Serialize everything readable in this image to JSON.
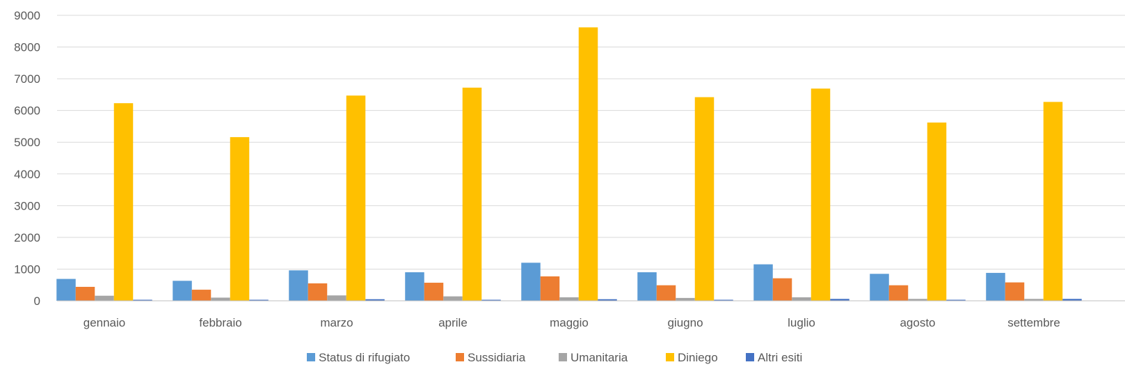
{
  "chart_data": {
    "type": "bar",
    "categories": [
      "gennaio",
      "febbraio",
      "marzo",
      "aprile",
      "maggio",
      "giugno",
      "luglio",
      "agosto",
      "settembre"
    ],
    "series": [
      {
        "name": "Status di rifugiato",
        "color": "#5B9BD5",
        "values": [
          690,
          630,
          960,
          900,
          1200,
          900,
          1150,
          850,
          880
        ]
      },
      {
        "name": "Sussidiaria",
        "color": "#ED7D31",
        "values": [
          440,
          350,
          550,
          570,
          770,
          490,
          710,
          490,
          580
        ]
      },
      {
        "name": "Umanitaria",
        "color": "#A5A5A5",
        "values": [
          160,
          100,
          170,
          140,
          110,
          90,
          110,
          60,
          60
        ]
      },
      {
        "name": "Diniego",
        "color": "#FFC000",
        "values": [
          6230,
          5160,
          6470,
          6720,
          8620,
          6420,
          6690,
          5620,
          6270
        ]
      },
      {
        "name": "Altri esiti",
        "color": "#4472C4",
        "values": [
          20,
          20,
          50,
          30,
          50,
          20,
          60,
          20,
          60
        ]
      }
    ],
    "y_ticks": [
      "0",
      "1000",
      "2000",
      "3000",
      "4000",
      "5000",
      "6000",
      "7000",
      "8000",
      "9000"
    ],
    "ylim": [
      0,
      9000
    ],
    "grid": true,
    "legend_position": "bottom",
    "title": "",
    "xlabel": "",
    "ylabel": ""
  }
}
